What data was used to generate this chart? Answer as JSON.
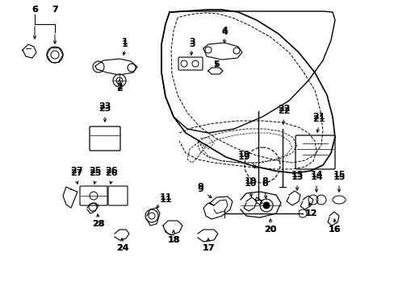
{
  "bg_color": "#ffffff",
  "line_color": "#000000",
  "fig_width": 4.89,
  "fig_height": 3.6,
  "dpi": 100,
  "label_fontsize": 7.5
}
